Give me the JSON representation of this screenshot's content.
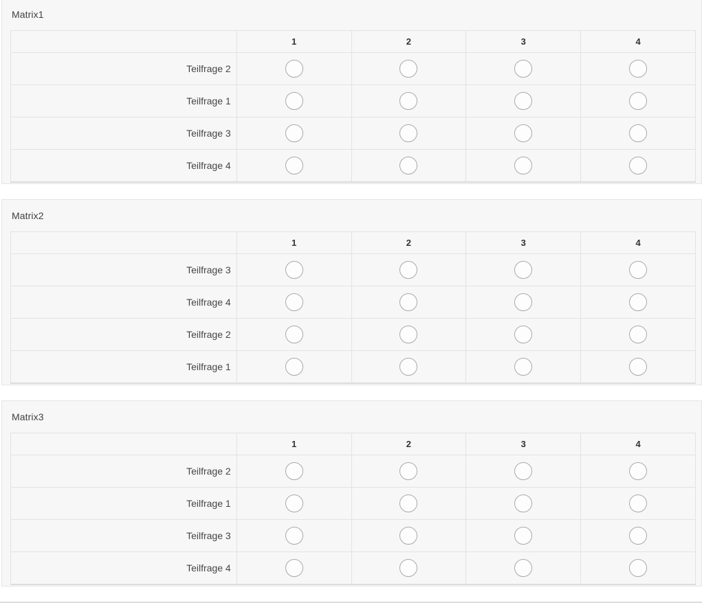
{
  "columns": [
    "1",
    "2",
    "3",
    "4"
  ],
  "matrices": [
    {
      "title": "Matrix1",
      "rows": [
        "Teilfrage 2",
        "Teilfrage 1",
        "Teilfrage 3",
        "Teilfrage 4"
      ]
    },
    {
      "title": "Matrix2",
      "rows": [
        "Teilfrage 3",
        "Teilfrage 4",
        "Teilfrage 2",
        "Teilfrage 1"
      ]
    },
    {
      "title": "Matrix3",
      "rows": [
        "Teilfrage 2",
        "Teilfrage 1",
        "Teilfrage 3",
        "Teilfrage 4"
      ]
    }
  ],
  "colors": {
    "panel_background": "#f7f7f7",
    "panel_border": "#e5e5e5",
    "table_border": "#e2e2e2",
    "radio_border": "#a9a9a9",
    "bottom_divider": "#dadcde"
  }
}
